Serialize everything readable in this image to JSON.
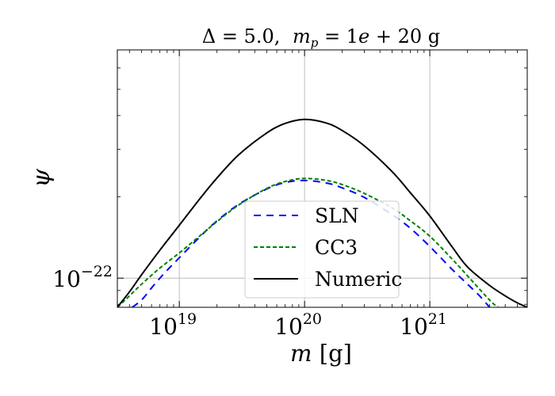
{
  "chart_data": {
    "type": "line",
    "title": "Δ = 5.0,  m_p = 1e + 20 g",
    "title_parts": {
      "left": "Δ = 5.0,",
      "mid_var": "m",
      "mid_sub": "p",
      "right": " = 1",
      "exp_var": "e",
      "tail": " + 20 g"
    },
    "xlabel": {
      "var": "m",
      "unit": " [g]"
    },
    "ylabel": "ψ",
    "x_scale": "log",
    "y_scale": "log",
    "xlim": [
      3.2e+18,
      6e+21
    ],
    "ylim": [
      7.8e-23,
      7e-22
    ],
    "x_ticks": [
      {
        "value": 1e+19,
        "base": "10",
        "exp": "19"
      },
      {
        "value": 1e+20,
        "base": "10",
        "exp": "20"
      },
      {
        "value": 1e+21,
        "base": "10",
        "exp": "21"
      }
    ],
    "y_ticks": [
      {
        "value": 1e-22,
        "base": "10",
        "exp": "−22"
      }
    ],
    "grid": true,
    "legend_position": "lower-center",
    "series": [
      {
        "name": "SLN",
        "color": "#0000ff",
        "dash": "dashed",
        "x": [
          4.2e+18,
          5e+18,
          6e+18,
          7e+18,
          8e+18,
          1e+19,
          1.5e+19,
          2e+19,
          3e+19,
          5e+19,
          7e+19,
          1e+20,
          1.5e+20,
          2e+20,
          3e+20,
          5e+20,
          7e+20,
          1e+21,
          1.5e+21,
          2e+21,
          2.5e+21,
          3e+21
        ],
        "y": [
          7.8e-23,
          8.3e-23,
          9.2e-23,
          1e-22,
          1.07e-22,
          1.19e-22,
          1.44e-22,
          1.63e-22,
          1.88e-22,
          2.14e-22,
          2.26e-22,
          2.3e-22,
          2.25e-22,
          2.16e-22,
          1.99e-22,
          1.72e-22,
          1.53e-22,
          1.31e-22,
          1.08e-22,
          9.5e-23,
          8.6e-23,
          7.8e-23
        ]
      },
      {
        "name": "CC3",
        "color": "#008000",
        "dash": "dashed",
        "x": [
          3.2e+18,
          4e+18,
          5e+18,
          7e+18,
          1e+19,
          1.5e+19,
          2e+19,
          3e+19,
          5e+19,
          7e+19,
          1e+20,
          1.5e+20,
          2e+20,
          3e+20,
          5e+20,
          7e+20,
          1e+21,
          1.5e+21,
          2e+21,
          3e+21,
          3.5e+21
        ],
        "y": [
          7.8e-23,
          8.6e-23,
          9.5e-23,
          1.09e-22,
          1.24e-22,
          1.45e-22,
          1.62e-22,
          1.87e-22,
          2.15e-22,
          2.28e-22,
          2.34e-22,
          2.3e-22,
          2.22e-22,
          2.06e-22,
          1.82e-22,
          1.63e-22,
          1.43e-22,
          1.18e-22,
          1.02e-22,
          8.3e-23,
          7.8e-23
        ]
      },
      {
        "name": "Numeric",
        "color": "#000000",
        "dash": "solid",
        "x": [
          3.2e+18,
          4e+18,
          5e+18,
          7e+18,
          1e+19,
          1.5e+19,
          2e+19,
          3e+19,
          5e+19,
          7e+19,
          1e+20,
          1.5e+20,
          2e+20,
          3e+20,
          5e+20,
          7e+20,
          1e+21,
          1.5e+21,
          2e+21,
          3e+21,
          4e+21,
          5e+21,
          6e+21
        ],
        "y": [
          7.8e-23,
          8.9e-23,
          1.03e-22,
          1.27e-22,
          1.57e-22,
          2e-22,
          2.35e-22,
          2.87e-22,
          3.45e-22,
          3.74e-22,
          3.87e-22,
          3.75e-22,
          3.52e-22,
          3.09e-22,
          2.48e-22,
          2.07e-22,
          1.7e-22,
          1.31e-22,
          1.1e-22,
          9.4e-23,
          8.6e-23,
          8.1e-23,
          7.8e-23
        ]
      }
    ]
  }
}
